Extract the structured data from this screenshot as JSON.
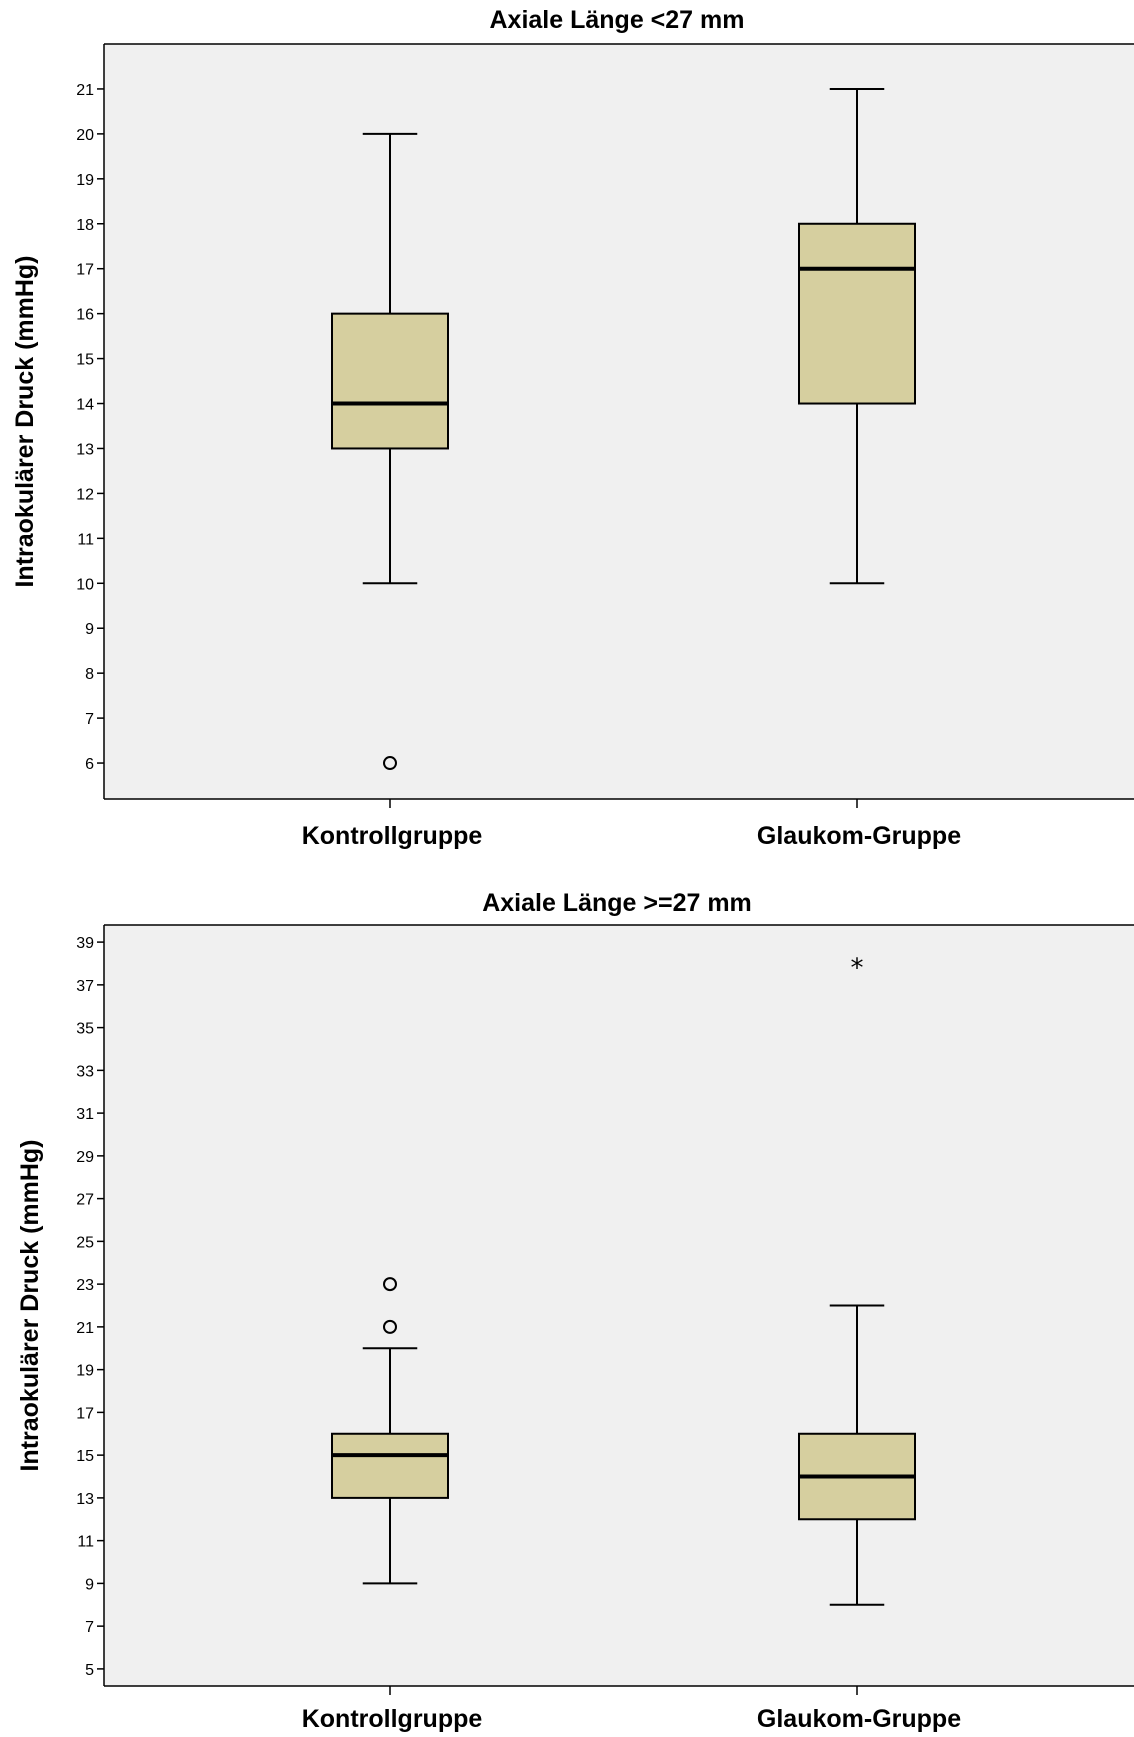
{
  "chart_data": [
    {
      "type": "box",
      "title": "Axiale Länge <27 mm",
      "ylabel": "Intraokulärer Druck (mmHg)",
      "ylim": [
        5.2,
        22.0
      ],
      "yticks": [
        6,
        7,
        8,
        9,
        10,
        11,
        12,
        13,
        14,
        15,
        16,
        17,
        18,
        19,
        20,
        21
      ],
      "categories": [
        "Kontrollgruppe",
        "Glaukom-Gruppe"
      ],
      "boxes": [
        {
          "category": "Kontrollgruppe",
          "whisker_low": 10,
          "q1": 13,
          "median": 14,
          "q3": 16,
          "whisker_high": 20,
          "outliers": [
            6
          ],
          "extremes": []
        },
        {
          "category": "Glaukom-Gruppe",
          "whisker_low": 10,
          "q1": 14,
          "median": 17,
          "q3": 18,
          "whisker_high": 21,
          "outliers": [],
          "extremes": []
        }
      ],
      "grid": false
    },
    {
      "type": "box",
      "title": "Axiale Länge >=27 mm",
      "ylabel": "Intraokulärer Druck (mmHg)",
      "ylim": [
        4.2,
        39.8
      ],
      "yticks": [
        5,
        7,
        9,
        11,
        13,
        15,
        17,
        19,
        21,
        23,
        25,
        27,
        29,
        31,
        33,
        35,
        37,
        39
      ],
      "categories": [
        "Kontrollgruppe",
        "Glaukom-Gruppe"
      ],
      "boxes": [
        {
          "category": "Kontrollgruppe",
          "whisker_low": 9,
          "q1": 13,
          "median": 15,
          "q3": 16,
          "whisker_high": 20,
          "outliers": [
            21,
            23
          ],
          "extremes": []
        },
        {
          "category": "Glaukom-Gruppe",
          "whisker_low": 8,
          "q1": 12,
          "median": 14,
          "q3": 16,
          "whisker_high": 22,
          "outliers": [],
          "extremes": [
            38
          ]
        }
      ],
      "grid": false
    }
  ]
}
